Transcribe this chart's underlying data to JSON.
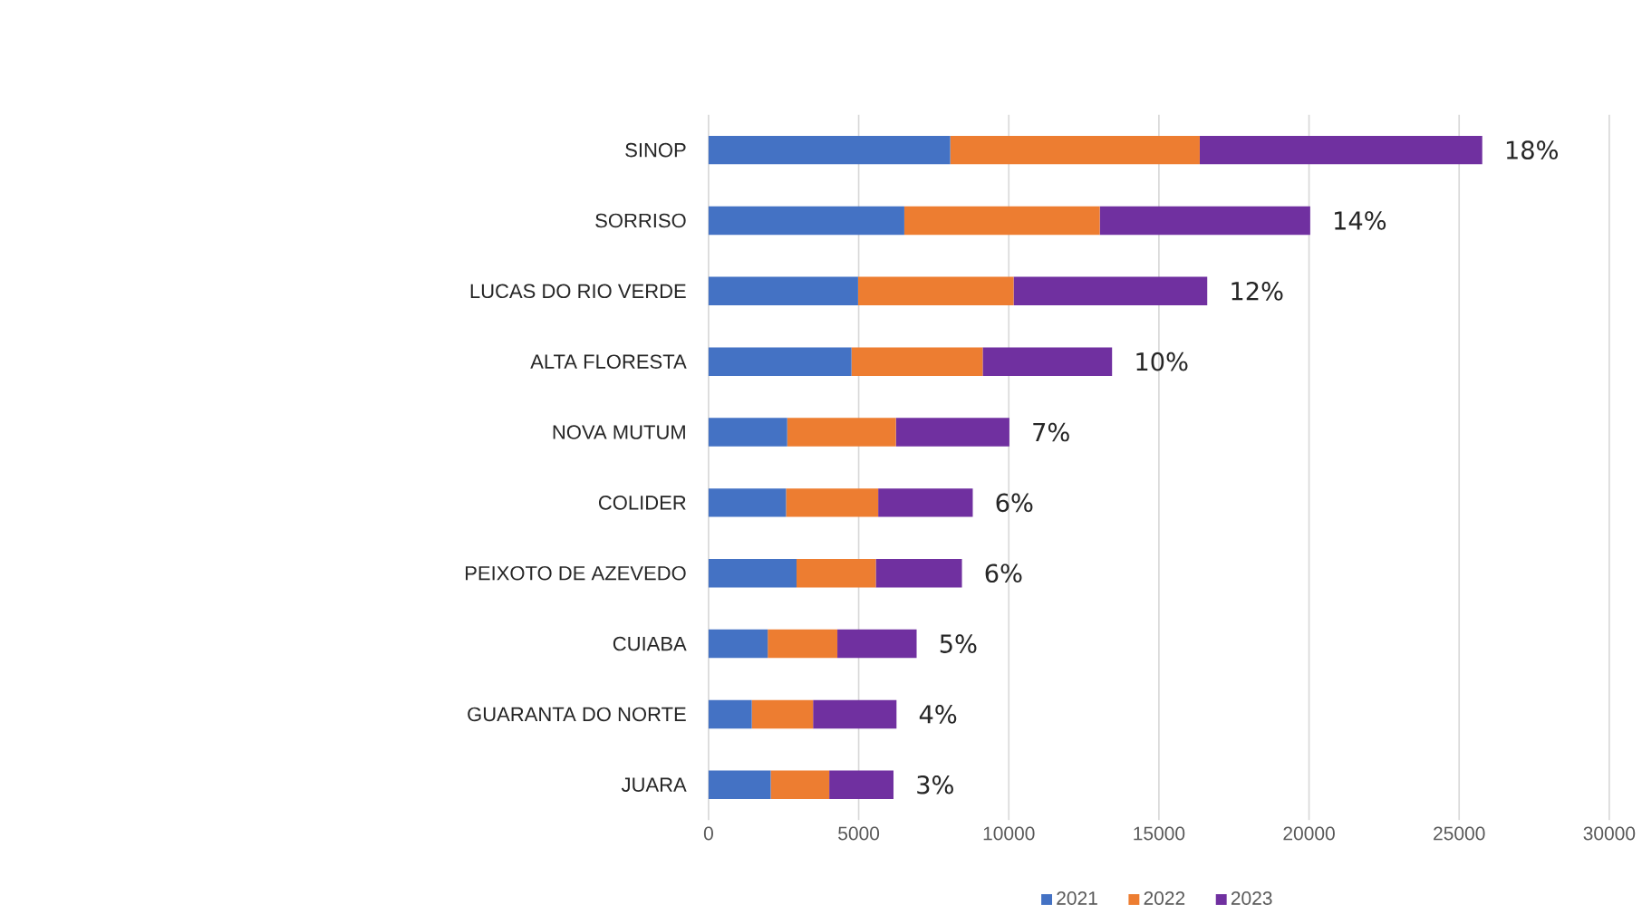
{
  "chart_data": {
    "type": "bar",
    "orientation": "horizontal",
    "stacked": true,
    "categories": [
      "SINOP",
      "SORRISO",
      "LUCAS DO RIO VERDE",
      "ALTA FLORESTA",
      "NOVA MUTUM",
      "COLIDER",
      "PEIXOTO DE AZEVEDO",
      "CUIABA",
      "GUARANTA DO NORTE",
      "JUARA"
    ],
    "series": [
      {
        "name": "2021",
        "color": "#4472c4",
        "values": [
          8050,
          6520,
          4980,
          4760,
          2620,
          2580,
          2930,
          1970,
          1440,
          2070
        ]
      },
      {
        "name": "2022",
        "color": "#ed7d31",
        "values": [
          8310,
          6510,
          5180,
          4370,
          3620,
          3070,
          2640,
          2320,
          2040,
          1950
        ]
      },
      {
        "name": "2023",
        "color": "#7030a0",
        "values": [
          9410,
          7010,
          6450,
          4310,
          3780,
          3150,
          2870,
          2640,
          2780,
          2140
        ]
      }
    ],
    "xlim": [
      0,
      30000
    ],
    "xticks": [
      0,
      5000,
      10000,
      15000,
      20000,
      25000,
      30000
    ],
    "grid": "x",
    "legend": "bottom",
    "annotations": [
      {
        "text": "18%",
        "x": 25770,
        "y": "SINOP"
      },
      {
        "text": "14%",
        "x": 20040,
        "y": "SORRISO"
      },
      {
        "text": "12%",
        "x": 16610,
        "y": "LUCAS DO RIO VERDE"
      },
      {
        "text": "10%",
        "x": 13440,
        "y": "ALTA FLORESTA"
      },
      {
        "text": "7%",
        "x": 10020,
        "y": "NOVA MUTUM"
      },
      {
        "text": "6%",
        "x": 8800,
        "y": "COLIDER"
      },
      {
        "text": "6%",
        "x": 8440,
        "y": "PEIXOTO DE AZEVEDO"
      },
      {
        "text": "5%",
        "x": 6930,
        "y": "CUIABA"
      },
      {
        "text": "4%",
        "x": 6260,
        "y": "GUARANTA DO NORTE"
      },
      {
        "text": "3%",
        "x": 6160,
        "y": "JUARA"
      }
    ]
  }
}
